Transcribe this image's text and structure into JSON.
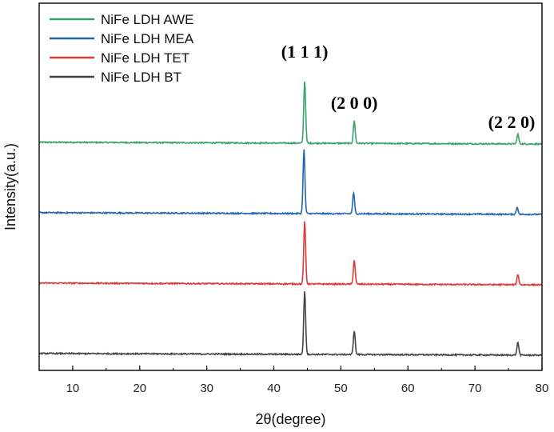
{
  "chart_data": {
    "type": "line",
    "title": "",
    "xlabel": "2θ(degree)",
    "ylabel": "Intensity(a.u.)",
    "xlim": [
      5,
      80
    ],
    "xticks": [
      10,
      20,
      30,
      40,
      50,
      60,
      70,
      80
    ],
    "yticks_shown": false,
    "legend_position": "top-left",
    "series": [
      {
        "name": "NiFe LDH AWE",
        "color": "#3aa36a",
        "offset": 3,
        "peaks": [
          {
            "x": 44.6,
            "height": 0.78
          },
          {
            "x": 52.0,
            "height": 0.28
          },
          {
            "x": 76.4,
            "height": 0.12
          }
        ]
      },
      {
        "name": "NiFe LDH MEA",
        "color": "#2466ad",
        "offset": 2,
        "peaks": [
          {
            "x": 44.5,
            "height": 0.8
          },
          {
            "x": 51.9,
            "height": 0.26
          },
          {
            "x": 76.3,
            "height": 0.09
          }
        ]
      },
      {
        "name": "NiFe LDH TET",
        "color": "#df3a3a",
        "offset": 1,
        "peaks": [
          {
            "x": 44.6,
            "height": 0.78
          },
          {
            "x": 52.0,
            "height": 0.3
          },
          {
            "x": 76.4,
            "height": 0.13
          }
        ]
      },
      {
        "name": "NiFe LDH BT",
        "color": "#444444",
        "offset": 0,
        "peaks": [
          {
            "x": 44.6,
            "height": 0.8
          },
          {
            "x": 52.0,
            "height": 0.3
          },
          {
            "x": 76.4,
            "height": 0.16
          }
        ]
      }
    ],
    "annotations": [
      {
        "text": "(1 1 1)",
        "x": 44.6
      },
      {
        "text": "(2 0 0)",
        "x": 52.0
      },
      {
        "text": "(2 2 0)",
        "x": 76.4
      }
    ]
  }
}
